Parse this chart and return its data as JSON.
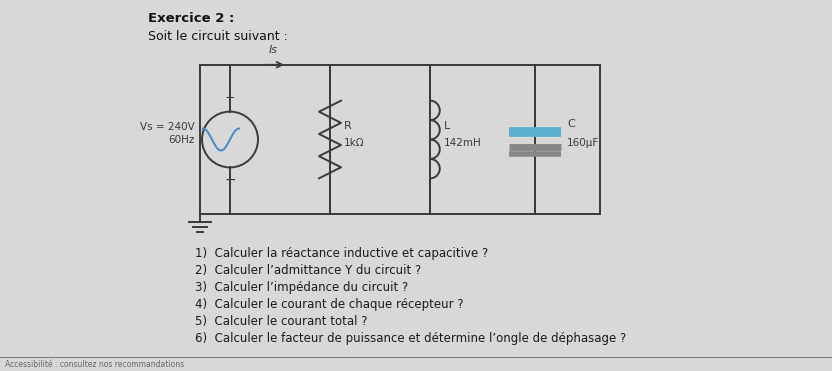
{
  "title": "Exercice 2 :",
  "subtitle": "Soit le circuit suivant :",
  "bg_color": "#d8d8d8",
  "questions": [
    "1)  Calculer la réactance inductive et capacitive ?",
    "2)  Calculer l’admittance Y du circuit ?",
    "3)  Calculer l’impédance du circuit ?",
    "4)  Calculer le courant de chaque récepteur ?",
    "5)  Calculer le courant total ?",
    "6)  Calculer le facteur de puissance et détermine l’ongle de déphasage ?"
  ],
  "circuit_color": "#3a3a3a",
  "capacitor_color_top": "#5ab0cc",
  "capacitor_color_bottom": "#888888",
  "bottom_bar_color": "#666666",
  "bottom_text": "Accessibilité : consultez nos recommandations"
}
